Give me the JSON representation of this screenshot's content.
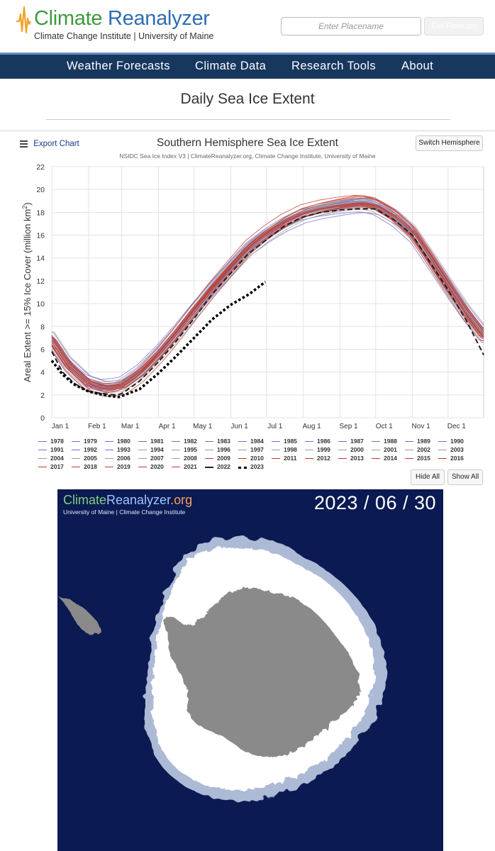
{
  "header": {
    "logo_word1": "Climate",
    "logo_word2": "Reanalyzer",
    "subtitle": "Climate Change Institute | University of Maine",
    "place_placeholder": "Enter Placename",
    "forecast_button": "Get Forecast"
  },
  "nav": [
    "Weather Forecasts",
    "Climate Data",
    "Research Tools",
    "About"
  ],
  "page_title": "Daily Sea Ice Extent",
  "chart_controls": {
    "export": "Export Chart",
    "switch": "Switch Hemisphere",
    "hide_all": "Hide All",
    "show_all": "Show All"
  },
  "chart_data": {
    "type": "line",
    "title": "Southern Hemisphere Sea Ice Extent",
    "subtitle": "NSIDC Sea Ice Index V3 | ClimateReanalyzer.org, Climate Change Institute, University of Maine",
    "ylabel": "Areal Extent >= 15% Ice Cover (million km",
    "ylabel_sup": "2",
    "ylabel_end": ")",
    "ylim": [
      0,
      22
    ],
    "yticks": [
      0,
      2,
      4,
      6,
      8,
      10,
      12,
      14,
      16,
      18,
      20,
      22
    ],
    "xlim_days": [
      1,
      365
    ],
    "xticks": [
      {
        "label": "Jan 1",
        "day": 1
      },
      {
        "label": "Feb 1",
        "day": 32
      },
      {
        "label": "Mar 1",
        "day": 60
      },
      {
        "label": "Apr 1",
        "day": 91
      },
      {
        "label": "May 1",
        "day": 121
      },
      {
        "label": "Jun 1",
        "day": 152
      },
      {
        "label": "Jul 1",
        "day": 182
      },
      {
        "label": "Aug 1",
        "day": 213
      },
      {
        "label": "Sep 1",
        "day": 244
      },
      {
        "label": "Oct 1",
        "day": 274
      },
      {
        "label": "Nov 1",
        "day": 305
      },
      {
        "label": "Dec 1",
        "day": 335
      }
    ],
    "grid": true,
    "legend_position": "bottom",
    "climatology_days": [
      1,
      15,
      32,
      45,
      55,
      60,
      75,
      91,
      105,
      121,
      136,
      152,
      167,
      182,
      197,
      213,
      228,
      244,
      258,
      265,
      274,
      290,
      305,
      320,
      335,
      350,
      365
    ],
    "climatology_values": [
      6.8,
      4.6,
      3.0,
      2.6,
      2.7,
      2.8,
      3.9,
      5.6,
      7.3,
      9.4,
      11.3,
      13.2,
      14.9,
      16.1,
      17.1,
      17.9,
      18.3,
      18.6,
      18.8,
      18.8,
      18.6,
      17.6,
      16.2,
      13.9,
      11.5,
      9.2,
      7.2
    ],
    "series_2022": {
      "days": [
        1,
        10,
        20,
        32,
        45,
        55,
        60,
        75,
        91,
        105,
        121,
        136,
        152,
        167,
        182,
        197,
        213,
        228,
        244,
        258,
        274,
        290,
        305,
        320,
        335,
        350,
        365
      ],
      "values": [
        5.8,
        4.0,
        3.0,
        2.3,
        2.1,
        2.0,
        2.1,
        3.2,
        4.9,
        6.6,
        8.7,
        10.8,
        12.7,
        14.4,
        15.6,
        16.8,
        17.6,
        18.0,
        18.2,
        18.3,
        18.3,
        17.3,
        16.0,
        13.6,
        11.2,
        8.6,
        5.5
      ]
    },
    "series_2023": {
      "days": [
        1,
        10,
        20,
        32,
        40,
        50,
        58,
        60,
        75,
        91,
        105,
        121,
        136,
        152,
        167,
        181
      ],
      "values": [
        5.0,
        3.8,
        2.9,
        2.3,
        2.1,
        1.9,
        1.8,
        1.9,
        2.5,
        3.9,
        5.3,
        7.0,
        8.6,
        9.9,
        10.8,
        11.9
      ]
    },
    "legend_years": [
      "1978",
      "1979",
      "1980",
      "1981",
      "1982",
      "1983",
      "1984",
      "1985",
      "1986",
      "1987",
      "1988",
      "1989",
      "1990",
      "1991",
      "1992",
      "1993",
      "1994",
      "1995",
      "1996",
      "1997",
      "1998",
      "1999",
      "2000",
      "2001",
      "2002",
      "2003",
      "2004",
      "2005",
      "2006",
      "2007",
      "2008",
      "2009",
      "2010",
      "2011",
      "2012",
      "2013",
      "2014",
      "2015",
      "2016",
      "2017",
      "2018",
      "2019",
      "2020",
      "2021",
      "2022",
      "2023"
    ],
    "colors": {
      "cool_years": "#7a6cc4",
      "mid_years": "#9a9aa8",
      "warm_years": "#c0392b",
      "year_2022": "#222222",
      "year_2023": "#000000"
    }
  },
  "map": {
    "brand1": "Climate",
    "brand2": "Reanalyzer",
    "brand3": ".org",
    "brand_sub": "University of Maine | Climate Change Institute",
    "date": "2023 / 06 / 30",
    "colors": {
      "ocean": "#0b1a52",
      "ice": "#ffffff",
      "land": "#8a8a8a"
    }
  }
}
